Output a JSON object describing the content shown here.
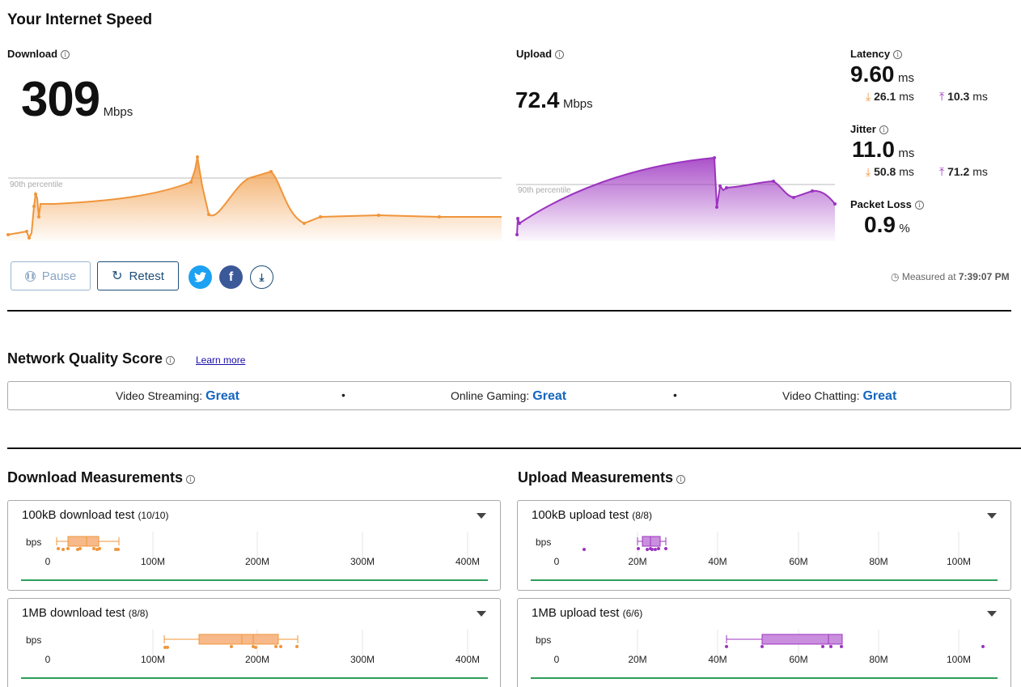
{
  "header": {
    "title": "Your Internet Speed"
  },
  "download": {
    "label": "Download",
    "value": "309",
    "unit": "Mbps",
    "percentile_label": "90th percentile"
  },
  "upload": {
    "label": "Upload",
    "value": "72.4",
    "unit": "Mbps",
    "percentile_label": "90th percentile"
  },
  "latency": {
    "label": "Latency",
    "value": "9.60",
    "unit": "ms",
    "down": "26.1",
    "up": "10.3",
    "sub_unit": "ms"
  },
  "jitter": {
    "label": "Jitter",
    "value": "11.0",
    "unit": "ms",
    "down": "50.8",
    "up": "71.2",
    "sub_unit": "ms"
  },
  "packet_loss": {
    "label": "Packet Loss",
    "value": "0.9",
    "unit": "%"
  },
  "buttons": {
    "pause": "Pause",
    "retest": "Retest"
  },
  "measured": {
    "prefix": "Measured at",
    "time": "7:39:07 PM"
  },
  "network_quality": {
    "title": "Network Quality Score",
    "learn_more": "Learn more",
    "items": [
      {
        "label": "Video Streaming:",
        "value": "Great"
      },
      {
        "label": "Online Gaming:",
        "value": "Great"
      },
      {
        "label": "Video Chatting:",
        "value": "Great"
      }
    ],
    "separator": "•"
  },
  "download_measurements": {
    "title": "Download Measurements",
    "cards": [
      {
        "title": "100kB download test",
        "count": "(10/10)",
        "axis_label": "bps",
        "ticks": [
          "0",
          "100M",
          "200M",
          "300M",
          "400M"
        ]
      },
      {
        "title": "1MB download test",
        "count": "(8/8)",
        "axis_label": "bps",
        "ticks": [
          "0",
          "100M",
          "200M",
          "300M",
          "400M"
        ]
      }
    ]
  },
  "upload_measurements": {
    "title": "Upload Measurements",
    "cards": [
      {
        "title": "100kB upload test",
        "count": "(8/8)",
        "axis_label": "bps",
        "ticks": [
          "0",
          "20M",
          "40M",
          "60M",
          "80M",
          "100M"
        ]
      },
      {
        "title": "1MB upload test",
        "count": "(6/6)",
        "axis_label": "bps",
        "ticks": [
          "0",
          "20M",
          "40M",
          "60M",
          "80M",
          "100M"
        ]
      }
    ]
  },
  "colors": {
    "download": "#f0953a",
    "upload": "#9c33c0",
    "accent": "#1565c0",
    "button": "#1e4e79",
    "green": "#2e9e5b",
    "twitter": "#1da1f2",
    "facebook": "#3b5998"
  },
  "icons": {
    "info": "info-icon",
    "pause": "pause-icon",
    "retest": "refresh-icon",
    "twitter": "twitter-icon",
    "facebook": "facebook-icon",
    "download": "download-icon",
    "clock": "clock-icon",
    "caret": "chevron-down-icon"
  }
}
